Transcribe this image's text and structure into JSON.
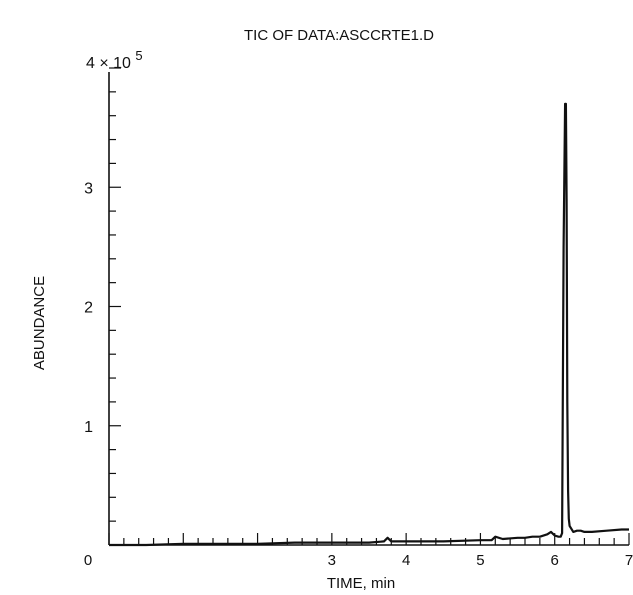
{
  "chart_data": {
    "type": "line",
    "title": "TIC OF DATA:ASCCRTE1.D",
    "xlabel": "TIME, min",
    "ylabel": "ABUNDANCE",
    "y_multiplier": "4 × 10",
    "y_multiplier_exp": "5",
    "xlim": [
      0,
      7
    ],
    "ylim": [
      0,
      4
    ],
    "x_ticks": [
      "0",
      "3",
      "4",
      "5",
      "6",
      "7"
    ],
    "y_ticks": [
      "1",
      "2",
      "3"
    ],
    "grid": false,
    "line_color": "#111111",
    "series": [
      {
        "x": [
          0.0,
          0.5,
          1.0,
          1.5,
          2.0,
          2.5,
          3.0,
          3.5,
          3.7,
          3.75,
          3.8,
          4.0,
          4.5,
          5.0,
          5.15,
          5.2,
          5.3,
          5.5,
          5.6,
          5.7,
          5.8,
          5.9,
          5.95,
          6.0,
          6.05,
          6.08,
          6.1,
          6.12,
          6.14,
          6.15,
          6.16,
          6.17,
          6.18,
          6.19,
          6.2,
          6.25,
          6.3,
          6.35,
          6.4,
          6.5,
          6.7,
          6.9,
          7.0
        ],
        "y": [
          0.0,
          0.0,
          0.01,
          0.01,
          0.01,
          0.02,
          0.02,
          0.02,
          0.03,
          0.06,
          0.03,
          0.03,
          0.03,
          0.04,
          0.04,
          0.07,
          0.05,
          0.06,
          0.06,
          0.07,
          0.07,
          0.09,
          0.11,
          0.08,
          0.07,
          0.07,
          0.1,
          2.5,
          3.7,
          3.7,
          2.9,
          1.2,
          0.45,
          0.22,
          0.16,
          0.11,
          0.12,
          0.12,
          0.11,
          0.11,
          0.12,
          0.13,
          0.13
        ]
      }
    ]
  }
}
